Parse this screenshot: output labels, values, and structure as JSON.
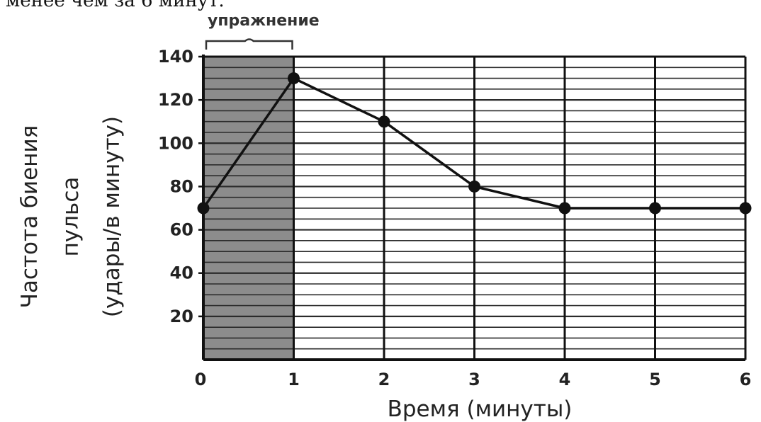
{
  "page_text": {
    "top_caption": "менее чем за 6 минут."
  },
  "chart_data": {
    "type": "line",
    "title": "",
    "xlabel": "Время (минуты)",
    "ylabel_lines": [
      "Частота биения",
      "пульса",
      "(удары/в минуту)"
    ],
    "x": [
      0,
      1,
      2,
      3,
      4,
      5,
      6
    ],
    "series": [
      {
        "values": [
          70,
          130,
          110,
          80,
          70,
          70,
          70
        ]
      }
    ],
    "x_ticks": [
      "0",
      "1",
      "2",
      "3",
      "4",
      "5",
      "6"
    ],
    "y_ticks": [
      "20",
      "40",
      "60",
      "80",
      "100",
      "120",
      "140"
    ],
    "xlim": [
      0,
      6
    ],
    "ylim": [
      0,
      140
    ],
    "minor_grid_step": 5,
    "grid": true,
    "shaded_region": {
      "x_from": 0,
      "x_to": 1,
      "label": "упражнение",
      "color": "#8c8c8c"
    },
    "line_color": "#111111"
  }
}
